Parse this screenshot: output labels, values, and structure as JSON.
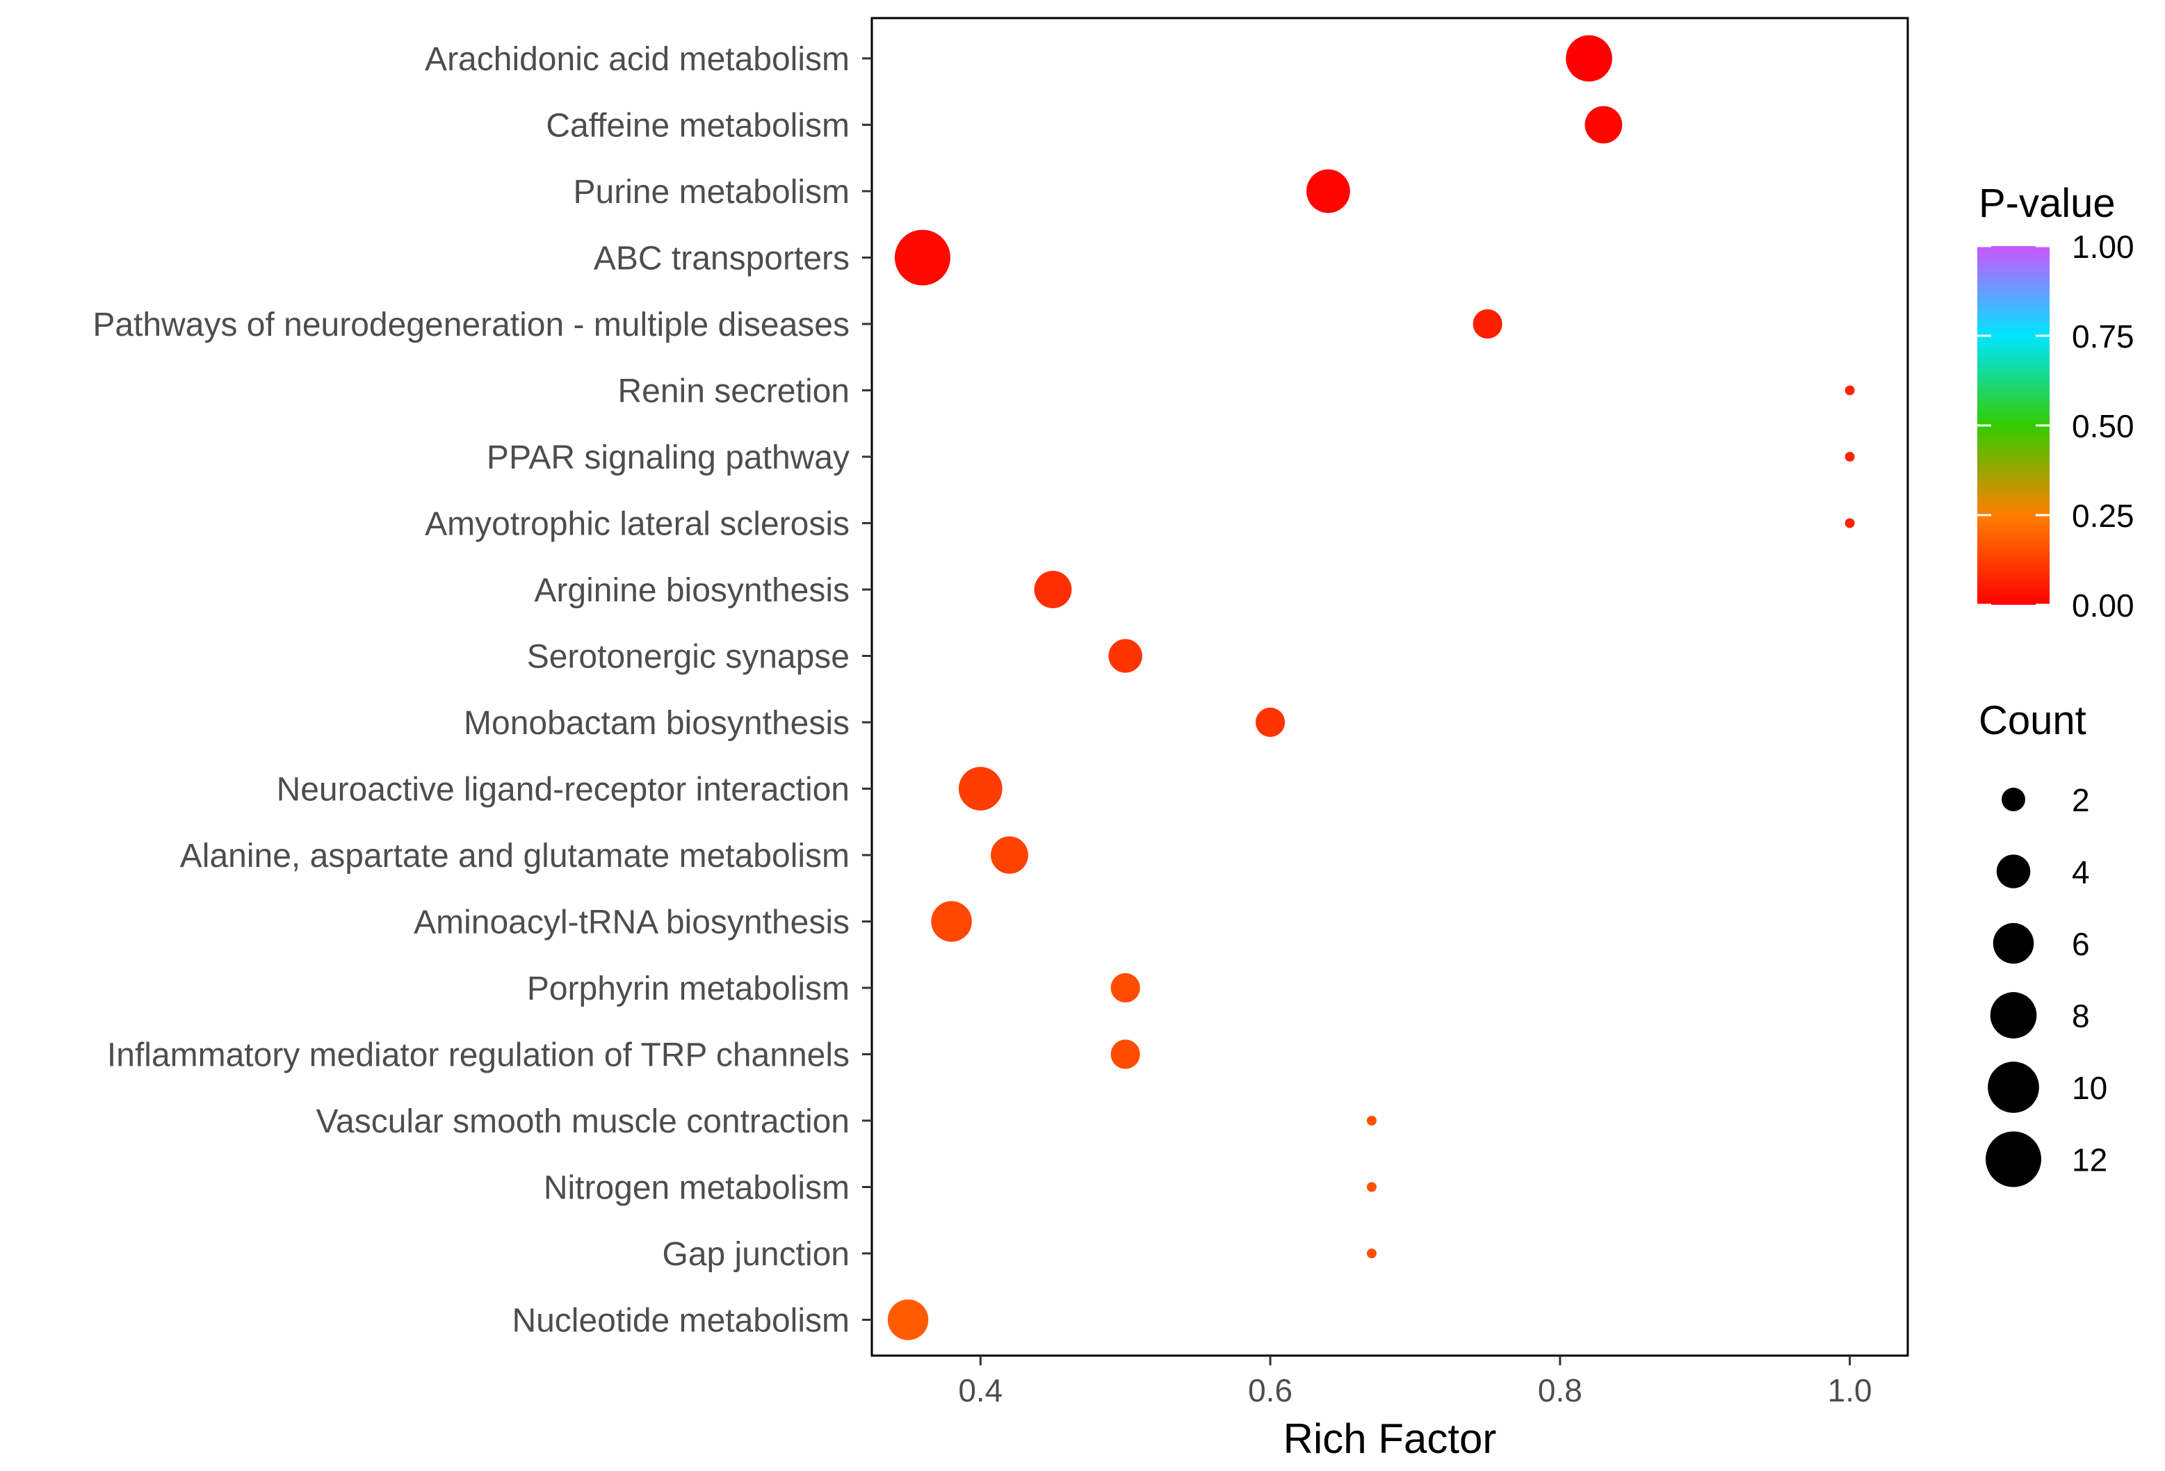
{
  "chart_data": {
    "type": "scatter",
    "title": "",
    "xlabel": "Rich Factor",
    "ylabel": "",
    "xlim": [
      0.325,
      1.04
    ],
    "xticks": [
      0.4,
      0.6,
      0.8,
      1.0
    ],
    "xtick_labels": [
      "0.4",
      "0.6",
      "0.8",
      "1.0"
    ],
    "grid": false,
    "points": [
      {
        "term": "Arachidonic acid metabolism",
        "rich_factor": 0.82,
        "count": 8,
        "p_value": 0.0
      },
      {
        "term": "Caffeine metabolism",
        "rich_factor": 0.83,
        "count": 5,
        "p_value": 0.01
      },
      {
        "term": "Purine metabolism",
        "rich_factor": 0.64,
        "count": 7,
        "p_value": 0.01
      },
      {
        "term": "ABC transporters",
        "rich_factor": 0.36,
        "count": 12,
        "p_value": 0.02
      },
      {
        "term": "Pathways of neurodegeneration - multiple diseases",
        "rich_factor": 0.75,
        "count": 3,
        "p_value": 0.06
      },
      {
        "term": "Renin secretion",
        "rich_factor": 1.0,
        "count": 1,
        "p_value": 0.07
      },
      {
        "term": "PPAR signaling pathway",
        "rich_factor": 1.0,
        "count": 1,
        "p_value": 0.07
      },
      {
        "term": "Amyotrophic lateral sclerosis",
        "rich_factor": 1.0,
        "count": 1,
        "p_value": 0.07
      },
      {
        "term": "Arginine biosynthesis",
        "rich_factor": 0.45,
        "count": 5,
        "p_value": 0.09
      },
      {
        "term": "Serotonergic synapse",
        "rich_factor": 0.5,
        "count": 4,
        "p_value": 0.1
      },
      {
        "term": "Monobactam biosynthesis",
        "rich_factor": 0.6,
        "count": 3,
        "p_value": 0.1
      },
      {
        "term": "Neuroactive ligand-receptor interaction",
        "rich_factor": 0.4,
        "count": 7,
        "p_value": 0.12
      },
      {
        "term": "Alanine, aspartate and glutamate metabolism",
        "rich_factor": 0.42,
        "count": 5,
        "p_value": 0.13
      },
      {
        "term": "Aminoacyl-tRNA biosynthesis",
        "rich_factor": 0.38,
        "count": 6,
        "p_value": 0.14
      },
      {
        "term": "Porphyrin metabolism",
        "rich_factor": 0.5,
        "count": 3,
        "p_value": 0.15
      },
      {
        "term": "Inflammatory mediator regulation of TRP channels",
        "rich_factor": 0.5,
        "count": 3,
        "p_value": 0.15
      },
      {
        "term": "Vascular smooth muscle contraction",
        "rich_factor": 0.67,
        "count": 1,
        "p_value": 0.16
      },
      {
        "term": "Nitrogen metabolism",
        "rich_factor": 0.67,
        "count": 1,
        "p_value": 0.16
      },
      {
        "term": "Gap junction",
        "rich_factor": 0.67,
        "count": 1,
        "p_value": 0.16
      },
      {
        "term": "Nucleotide metabolism",
        "rich_factor": 0.35,
        "count": 6,
        "p_value": 0.18
      }
    ],
    "color_legend": {
      "title": "P-value",
      "range": [
        0.0,
        1.0
      ],
      "ticks": [
        "1.00",
        "0.75",
        "0.50",
        "0.25",
        "0.00"
      ],
      "tick_values": [
        1.0,
        0.75,
        0.5,
        0.25,
        0.0
      ],
      "colors": [
        "#ff0000",
        "#ff7f00",
        "#33cc00",
        "#00e5ff",
        "#cc55ff"
      ]
    },
    "size_legend": {
      "title": "Count",
      "values": [
        2,
        4,
        6,
        8,
        10,
        12
      ],
      "labels": [
        "2",
        "4",
        "6",
        "8",
        "10",
        "12"
      ],
      "dot_color": "#000000"
    }
  }
}
